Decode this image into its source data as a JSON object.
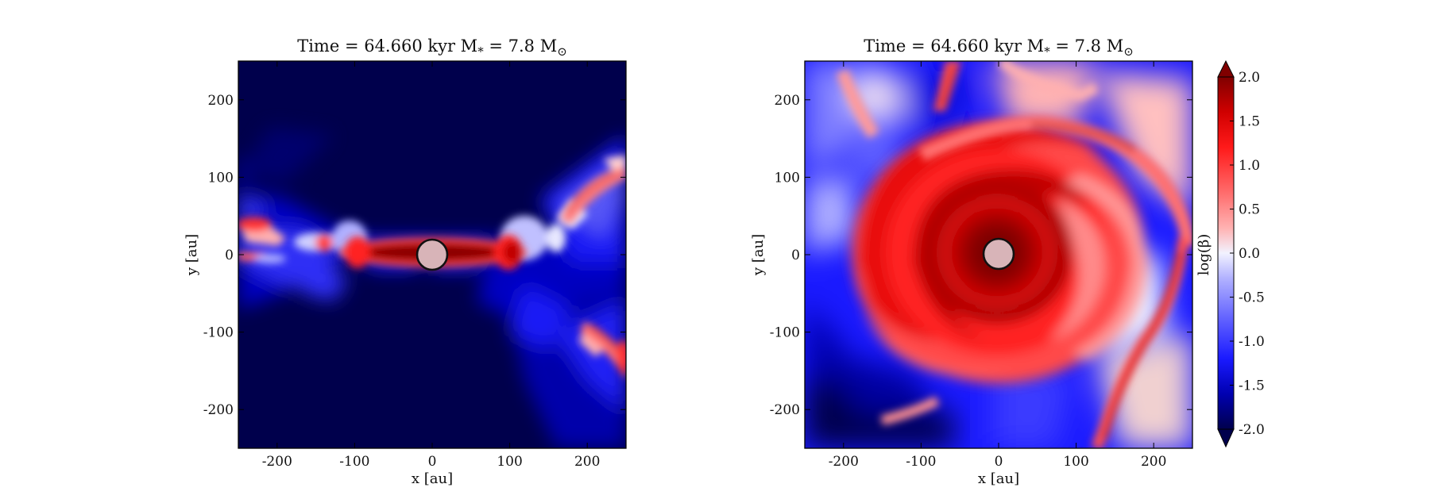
{
  "chart_data": [
    {
      "type": "heatmap",
      "title": "Time = 64.660 kyr    M$_*$ = 7.8 M$_\\odot$",
      "title_text": {
        "lead": "Time = 64.660 kyr    M",
        "mass_sub": "*",
        "mass_value": " = 7.8 M",
        "sun_sub": "⊙"
      },
      "xlabel": "x [au]",
      "ylabel": "y [au]",
      "xlim": [
        -250,
        250
      ],
      "ylim": [
        -250,
        250
      ],
      "xticks": [
        "-200",
        "-100",
        "0",
        "100",
        "200"
      ],
      "yticks": [
        "200",
        "100",
        "0",
        "-100",
        "-200"
      ],
      "field": "log(β)",
      "colormap": "seismic",
      "value_range": [
        -2.0,
        2.0
      ],
      "central_sink": {
        "x": 0,
        "y": 0,
        "color": "#d8b4b8"
      },
      "description_features": [
        {
          "feature": "equatorial disk",
          "x_range": [
            -110,
            110
          ],
          "y_range": [
            -10,
            10
          ],
          "log_beta": 1.8
        },
        {
          "feature": "background",
          "log_beta": -2.0
        },
        {
          "feature": "outer shell arcs",
          "log_beta": 0.8
        }
      ]
    },
    {
      "type": "heatmap",
      "title": "Time = 64.660 kyr    M$_*$ = 7.8 M$_\\odot$",
      "title_text": {
        "lead": "Time = 64.660 kyr    M",
        "mass_sub": "*",
        "mass_value": " = 7.8 M",
        "sun_sub": "⊙"
      },
      "xlabel": "x [au]",
      "ylabel": "y [au]",
      "xlim": [
        -250,
        250
      ],
      "ylim": [
        -250,
        250
      ],
      "xticks": [
        "-200",
        "-100",
        "0",
        "100",
        "200"
      ],
      "yticks": [
        "200",
        "100",
        "0",
        "-100",
        "-200"
      ],
      "field": "log(β)",
      "colormap": "seismic",
      "value_range": [
        -2.0,
        2.0
      ],
      "central_sink": {
        "x": 0,
        "y": 0,
        "color": "#d8b4b8"
      },
      "description_features": [
        {
          "feature": "spiral arms",
          "log_beta": 1.5
        },
        {
          "feature": "inner core",
          "log_beta": 2.0
        },
        {
          "feature": "outer envelope",
          "log_beta": -1.2
        }
      ]
    }
  ],
  "colorbar": {
    "label": "log(β)",
    "ticks": [
      "2.0",
      "1.5",
      "1.0",
      "0.5",
      "0.0",
      "-0.5",
      "-1.0",
      "-1.5",
      "-2.0"
    ],
    "tick_values": [
      2.0,
      1.5,
      1.0,
      0.5,
      0.0,
      -0.5,
      -1.0,
      -1.5,
      -2.0
    ],
    "extend": "both",
    "colors": [
      "#00004c",
      "#0000b0",
      "#1a1aff",
      "#6666ff",
      "#b3b3ff",
      "#f2f2ff",
      "#ffb3b3",
      "#ff6666",
      "#ff1a1a",
      "#d00000",
      "#800000"
    ]
  }
}
